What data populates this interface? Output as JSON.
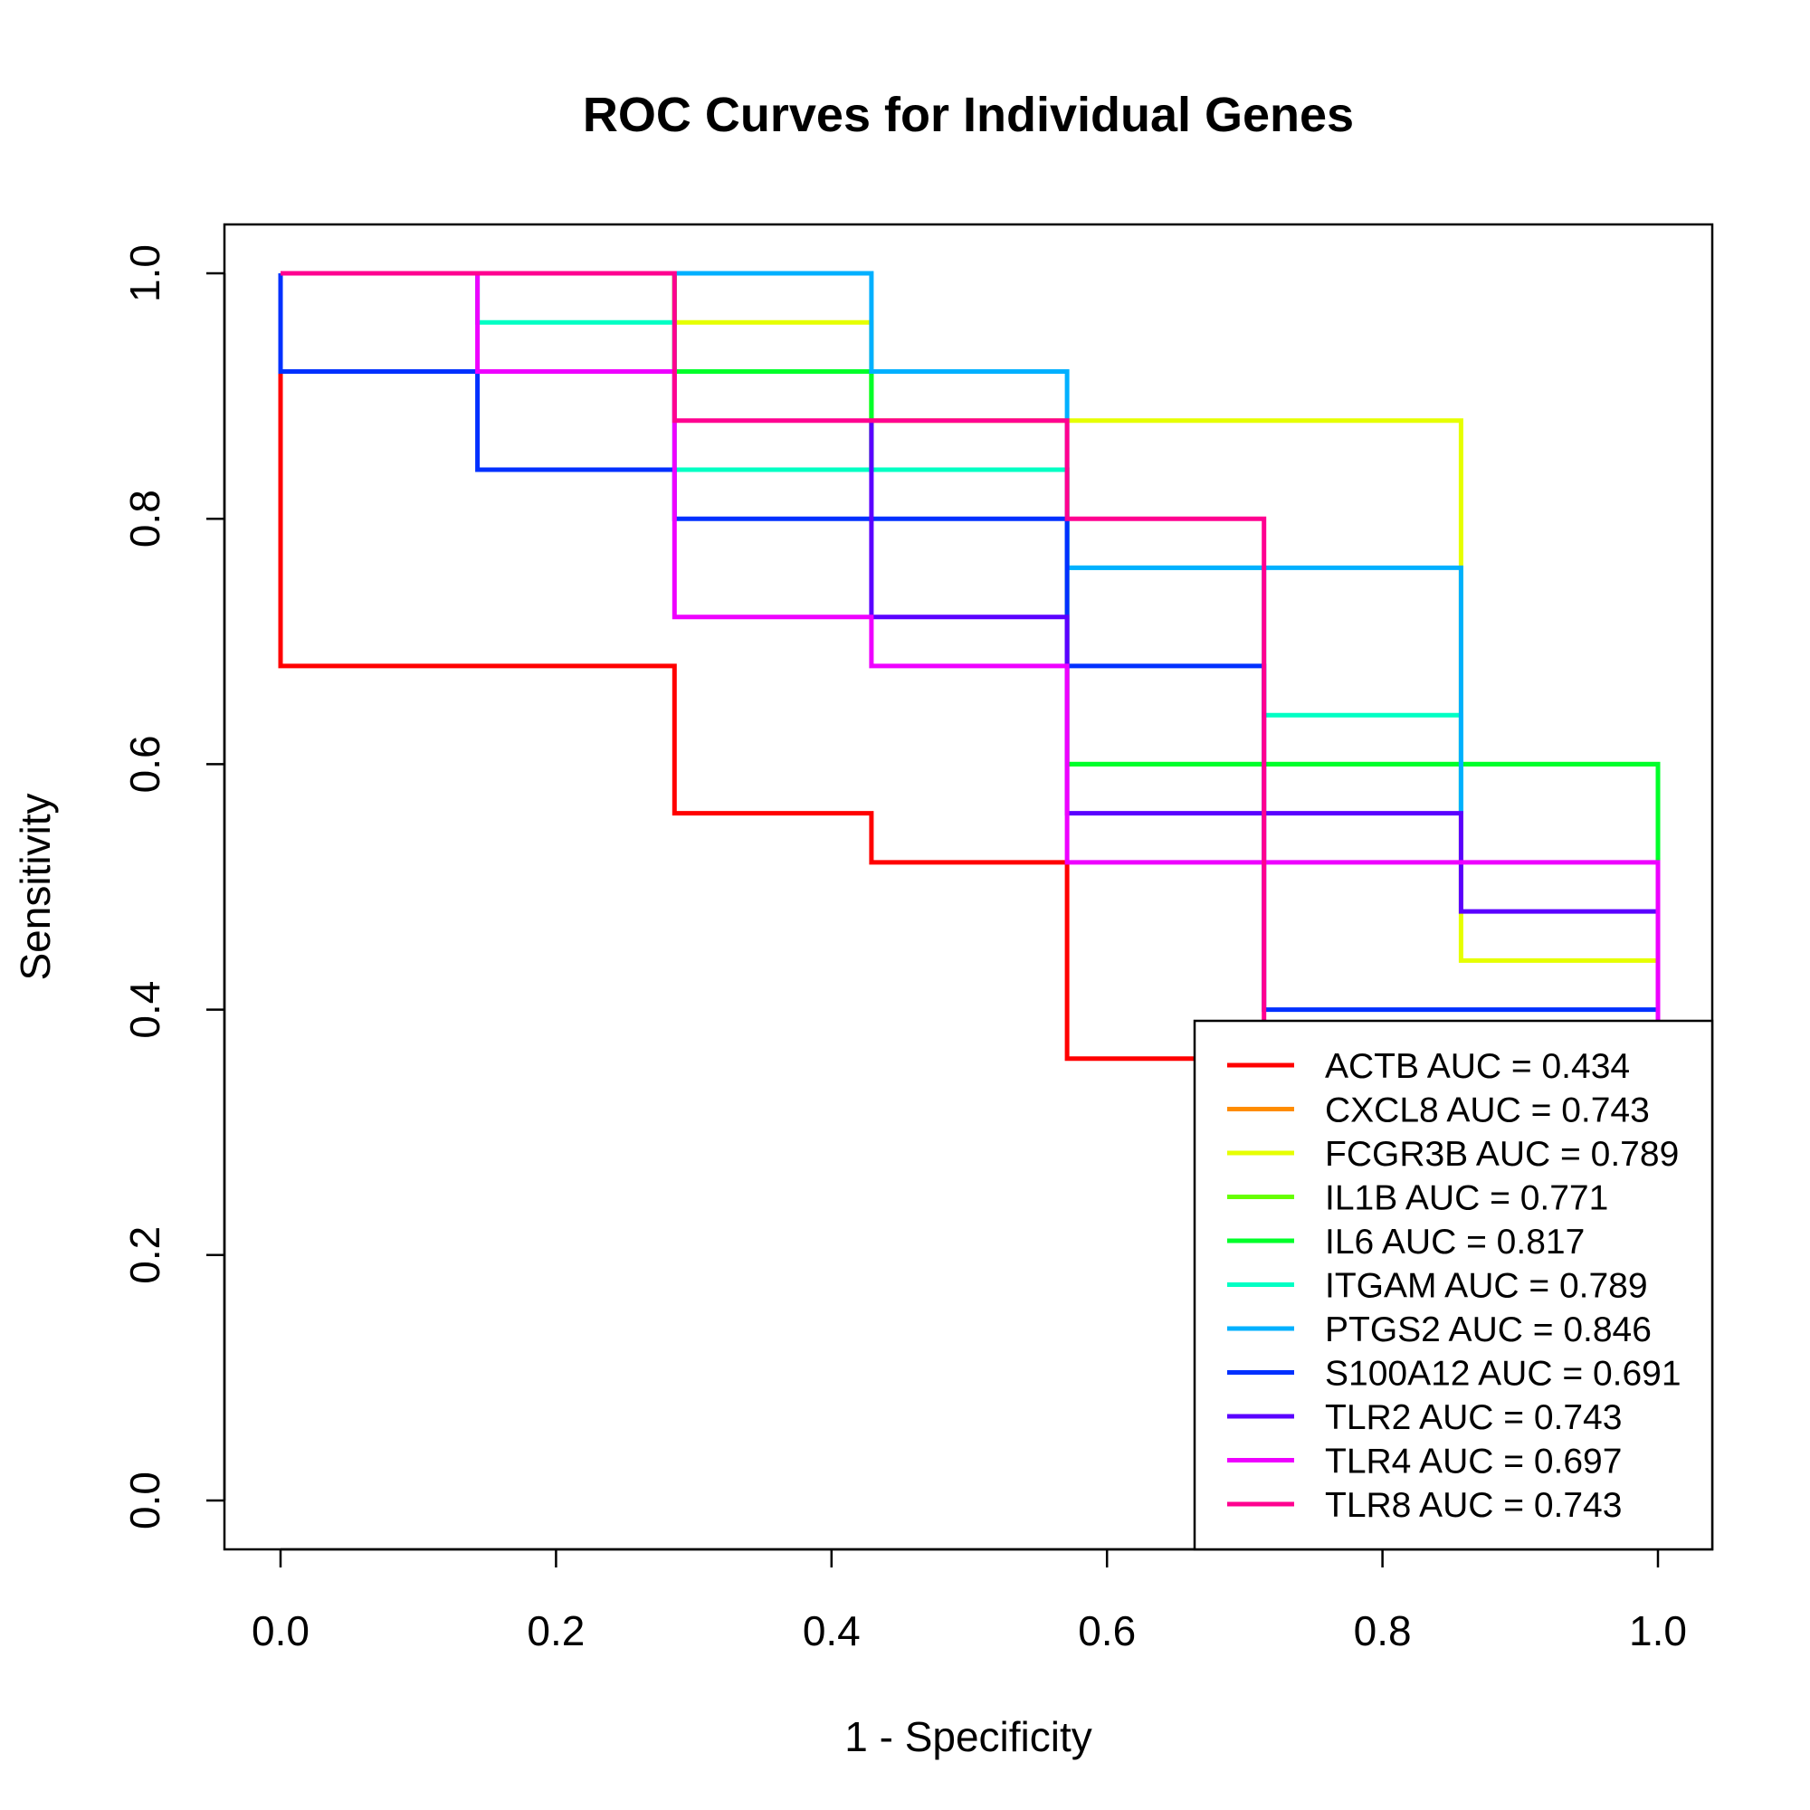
{
  "chart_data": {
    "type": "line",
    "step": true,
    "title": "ROC Curves for Individual Genes",
    "xlabel": "1 - Specificity",
    "ylabel": "Sensitivity",
    "xlim": [
      0,
      1
    ],
    "ylim": [
      0,
      1
    ],
    "xticks": [
      "0.0",
      "0.2",
      "0.4",
      "0.6",
      "0.8",
      "1.0"
    ],
    "yticks": [
      "0.0",
      "0.2",
      "0.4",
      "0.6",
      "0.8",
      "1.0"
    ],
    "grid": false,
    "legend_position": "bottom-right",
    "series": [
      {
        "name": "ACTB AUC = 0.434",
        "color": "#FF0000",
        "x": [
          0,
          0,
          0.286,
          0.286,
          0.429,
          0.429,
          0.571,
          0.571,
          0.714
        ],
        "y": [
          1.0,
          0.68,
          0.68,
          0.56,
          0.56,
          0.52,
          0.52,
          0.36,
          0.36
        ]
      },
      {
        "name": "CXCL8 AUC = 0.743",
        "color": "#FF8C00",
        "x": [],
        "y": []
      },
      {
        "name": "FCGR3B AUC = 0.789",
        "color": "#E6FF00",
        "x": [
          0,
          0,
          0.286,
          0.286,
          0.429,
          0.429,
          0.857,
          0.857,
          1.0,
          1.0
        ],
        "y": [
          1.0,
          1.0,
          1.0,
          0.96,
          0.96,
          0.88,
          0.88,
          0.44,
          0.44,
          0.4
        ]
      },
      {
        "name": "IL1B AUC = 0.771",
        "color": "#66FF00",
        "x": [
          0,
          0.286,
          0.286,
          0.429,
          0.429,
          0.571,
          0.571,
          1.0,
          1.0
        ],
        "y": [
          1.0,
          1.0,
          0.92,
          0.92,
          0.84,
          0.84,
          0.6,
          0.6,
          0.52
        ]
      },
      {
        "name": "IL6 AUC = 0.817",
        "color": "#00FF2A",
        "x": [
          0,
          0.286,
          0.286,
          0.429,
          0.429,
          0.571,
          0.571,
          1.0,
          1.0
        ],
        "y": [
          1.0,
          1.0,
          0.92,
          0.92,
          0.84,
          0.84,
          0.6,
          0.6,
          0.52
        ]
      },
      {
        "name": "ITGAM AUC = 0.789",
        "color": "#00FFC4",
        "x": [
          0,
          0.143,
          0.143,
          0.286,
          0.286,
          0.571,
          0.571,
          0.714,
          0.714,
          0.857,
          0.857
        ],
        "y": [
          1.0,
          1.0,
          0.96,
          0.96,
          0.84,
          0.84,
          0.76,
          0.76,
          0.64,
          0.64,
          0.56
        ]
      },
      {
        "name": "PTGS2 AUC = 0.846",
        "color": "#00B0FF",
        "x": [
          0,
          0.429,
          0.429,
          0.571,
          0.571,
          0.857,
          0.857
        ],
        "y": [
          1.0,
          1.0,
          0.92,
          0.92,
          0.76,
          0.76,
          0.56
        ]
      },
      {
        "name": "S100A12 AUC = 0.691",
        "color": "#0030FF",
        "x": [
          0,
          0,
          0.143,
          0.143,
          0.286,
          0.286,
          0.571,
          0.571,
          0.714,
          0.714,
          1.0,
          1.0
        ],
        "y": [
          1.0,
          0.92,
          0.92,
          0.84,
          0.84,
          0.8,
          0.8,
          0.68,
          0.68,
          0.4,
          0.4,
          0.36
        ]
      },
      {
        "name": "TLR2 AUC = 0.743",
        "color": "#5A00FF",
        "x": [
          0.429,
          0.429,
          0.571,
          0.571,
          0.857,
          0.857,
          1.0,
          1.0
        ],
        "y": [
          0.88,
          0.72,
          0.72,
          0.56,
          0.56,
          0.48,
          0.48,
          0.4
        ]
      },
      {
        "name": "TLR4 AUC = 0.697",
        "color": "#EE00FF",
        "x": [
          0.143,
          0.143,
          0.286,
          0.286,
          0.429,
          0.429,
          0.571,
          0.571,
          1.0,
          1.0
        ],
        "y": [
          1.0,
          0.92,
          0.92,
          0.72,
          0.72,
          0.68,
          0.68,
          0.52,
          0.52,
          0.36
        ]
      },
      {
        "name": "TLR8 AUC = 0.743",
        "color": "#FF0090",
        "x": [
          0,
          0.286,
          0.286,
          0.571,
          0.571,
          0.714,
          0.714
        ],
        "y": [
          1.0,
          1.0,
          0.88,
          0.88,
          0.8,
          0.8,
          0.36
        ]
      }
    ]
  }
}
